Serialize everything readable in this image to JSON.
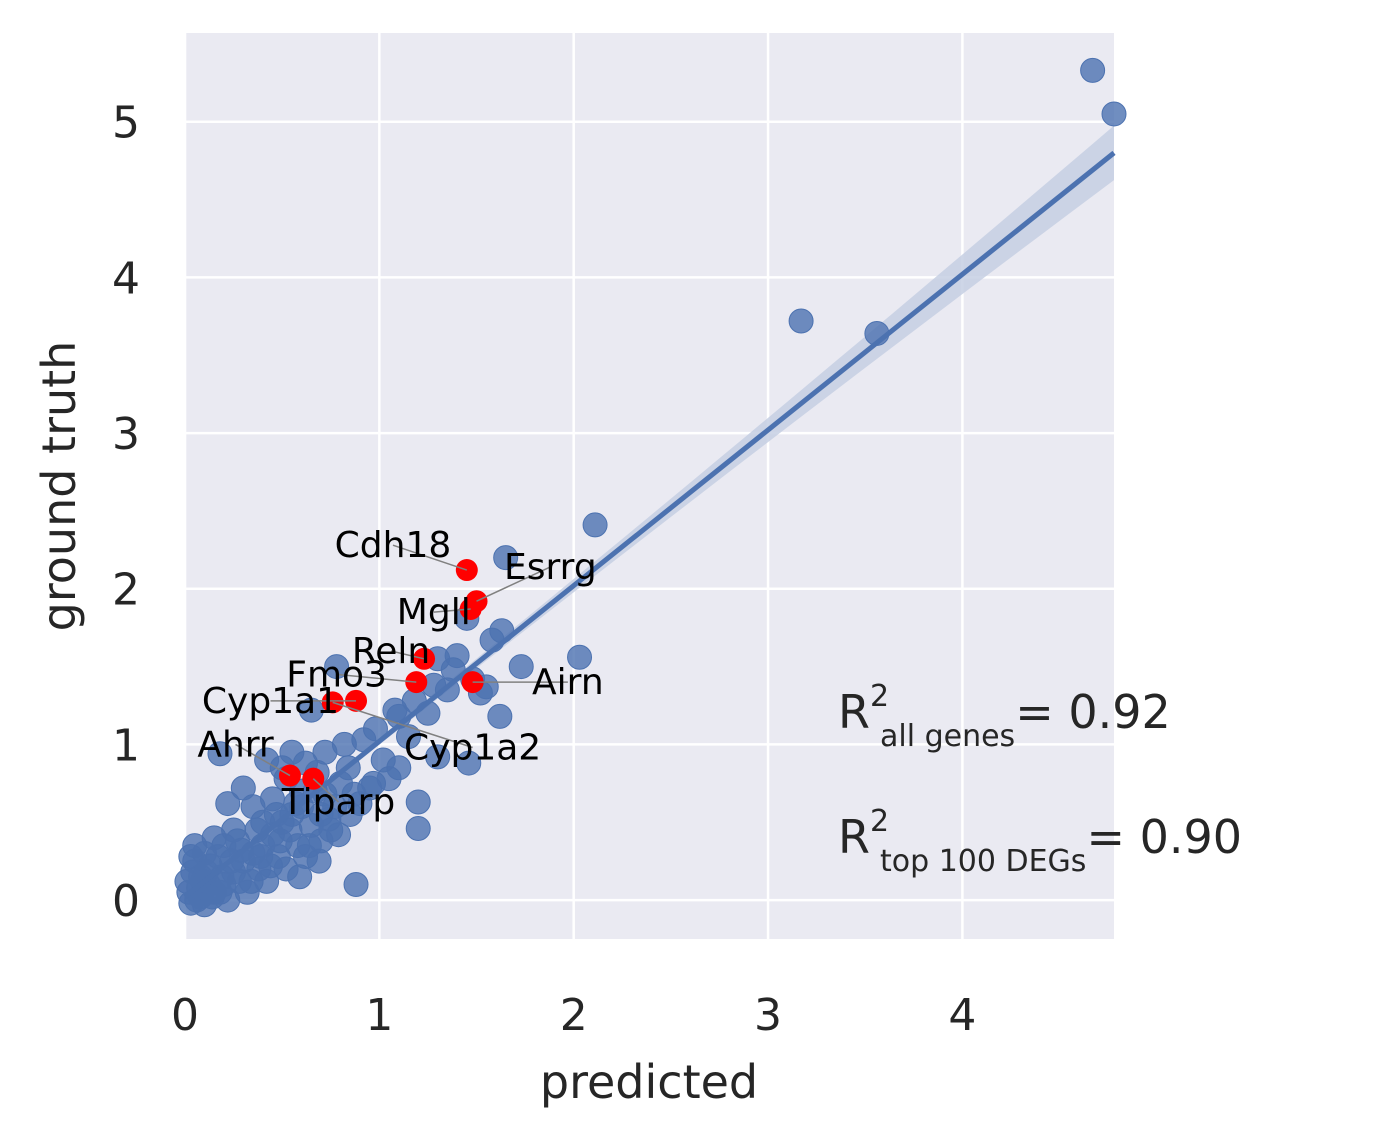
{
  "chart_data": {
    "type": "scatter",
    "xlabel": "predicted",
    "ylabel": "ground truth",
    "xlim": [
      0,
      4.78
    ],
    "ylim": [
      -0.25,
      5.57
    ],
    "xticks": [
      0,
      1,
      2,
      3,
      4
    ],
    "yticks": [
      0,
      1,
      2,
      3,
      4,
      5
    ],
    "grid": true,
    "colors": {
      "background": "#eaeaf2",
      "grid": "#ffffff",
      "points": "#4c72b0",
      "highlight": "#ff0000",
      "regression": "#4c72b0",
      "ci_band": "#c5cfe3",
      "arrow": "#808080"
    },
    "regression": {
      "slope": 1.0,
      "intercept": 0.02,
      "ci_halfwidth_at_max": 0.16
    },
    "points": [
      [
        4.67,
        5.33
      ],
      [
        4.78,
        5.05
      ],
      [
        3.17,
        3.72
      ],
      [
        3.56,
        3.64
      ],
      [
        2.11,
        2.41
      ],
      [
        1.65,
        2.2
      ],
      [
        2.03,
        1.56
      ],
      [
        1.73,
        1.5
      ],
      [
        1.63,
        1.73
      ],
      [
        1.58,
        1.67
      ],
      [
        1.62,
        1.18
      ],
      [
        1.46,
        0.88
      ],
      [
        1.55,
        1.37
      ],
      [
        1.52,
        1.33
      ],
      [
        1.4,
        1.57
      ],
      [
        1.3,
        1.55
      ],
      [
        1.45,
        1.81
      ],
      [
        1.35,
        1.35
      ],
      [
        1.3,
        0.92
      ],
      [
        1.2,
        0.63
      ],
      [
        1.2,
        0.46
      ],
      [
        1.1,
        0.85
      ],
      [
        1.05,
        0.78
      ],
      [
        0.95,
        0.72
      ],
      [
        0.92,
        1.03
      ],
      [
        0.88,
        0.1
      ],
      [
        0.78,
        1.5
      ],
      [
        0.65,
        1.22
      ],
      [
        0.55,
        0.95
      ],
      [
        0.5,
        0.85
      ],
      [
        0.42,
        0.9
      ],
      [
        0.18,
        0.94
      ],
      [
        0.22,
        0.62
      ],
      [
        0.9,
        0.62
      ],
      [
        0.85,
        0.55
      ],
      [
        0.75,
        0.45
      ],
      [
        0.7,
        0.55
      ],
      [
        0.68,
        0.82
      ],
      [
        0.6,
        0.7
      ],
      [
        0.45,
        0.65
      ],
      [
        0.4,
        0.5
      ],
      [
        0.35,
        0.6
      ],
      [
        0.3,
        0.72
      ],
      [
        0.25,
        0.45
      ],
      [
        0.2,
        0.35
      ],
      [
        0.15,
        0.4
      ],
      [
        0.1,
        0.3
      ],
      [
        0.05,
        0.25
      ],
      [
        0.08,
        0.15
      ],
      [
        0.12,
        0.1
      ],
      [
        0.02,
        0.05
      ],
      [
        0.04,
        0.18
      ],
      [
        0.06,
        0.0
      ],
      [
        0.1,
        -0.03
      ],
      [
        0.15,
        0.05
      ],
      [
        0.2,
        0.1
      ],
      [
        0.25,
        0.18
      ],
      [
        0.3,
        0.25
      ],
      [
        0.35,
        0.3
      ],
      [
        0.4,
        0.35
      ],
      [
        0.45,
        0.42
      ],
      [
        0.5,
        0.5
      ],
      [
        0.55,
        0.55
      ],
      [
        0.6,
        0.6
      ],
      [
        0.65,
        0.48
      ],
      [
        0.72,
        0.68
      ],
      [
        0.8,
        0.75
      ],
      [
        0.58,
        0.35
      ],
      [
        0.48,
        0.28
      ],
      [
        0.38,
        0.2
      ],
      [
        0.28,
        0.12
      ],
      [
        0.18,
        0.05
      ],
      [
        0.08,
        0.02
      ],
      [
        0.03,
        -0.02
      ],
      [
        0.22,
        0.0
      ],
      [
        0.32,
        0.05
      ],
      [
        0.42,
        0.12
      ],
      [
        0.52,
        0.2
      ],
      [
        0.62,
        0.28
      ],
      [
        0.7,
        0.38
      ],
      [
        0.13,
        0.22
      ],
      [
        0.09,
        0.12
      ],
      [
        0.17,
        0.28
      ],
      [
        0.27,
        0.38
      ],
      [
        0.37,
        0.45
      ],
      [
        0.47,
        0.55
      ],
      [
        0.57,
        0.62
      ],
      [
        0.67,
        0.7
      ],
      [
        0.77,
        0.6
      ],
      [
        0.87,
        0.68
      ],
      [
        0.97,
        0.75
      ],
      [
        1.02,
        0.9
      ],
      [
        1.15,
        1.05
      ],
      [
        1.25,
        1.2
      ],
      [
        1.1,
        1.18
      ],
      [
        0.98,
        1.1
      ],
      [
        0.82,
        1.0
      ],
      [
        0.72,
        0.95
      ],
      [
        0.62,
        0.88
      ],
      [
        0.52,
        0.78
      ],
      [
        0.01,
        0.12
      ],
      [
        0.03,
        0.28
      ],
      [
        0.05,
        0.35
      ],
      [
        0.07,
        0.08
      ],
      [
        0.11,
        0.18
      ],
      [
        0.14,
        0.02
      ],
      [
        0.19,
        0.15
      ],
      [
        0.24,
        0.25
      ],
      [
        0.29,
        0.32
      ],
      [
        0.34,
        0.12
      ],
      [
        0.39,
        0.28
      ],
      [
        0.44,
        0.22
      ],
      [
        0.49,
        0.38
      ],
      [
        0.54,
        0.45
      ],
      [
        0.59,
        0.15
      ],
      [
        0.64,
        0.35
      ],
      [
        0.69,
        0.25
      ],
      [
        0.74,
        0.52
      ],
      [
        0.79,
        0.42
      ],
      [
        0.84,
        0.85
      ],
      [
        1.38,
        1.48
      ],
      [
        1.48,
        1.42
      ],
      [
        1.28,
        1.38
      ],
      [
        1.18,
        1.28
      ],
      [
        1.08,
        1.22
      ]
    ],
    "highlighted_genes": [
      {
        "name": "Cdh18",
        "x": 1.45,
        "y": 2.12,
        "lx": 1.07,
        "ly": 2.28
      },
      {
        "name": "Esrrg",
        "x": 1.5,
        "y": 1.92,
        "lx": 1.88,
        "ly": 2.14
      },
      {
        "name": "Mgll",
        "x": 1.47,
        "y": 1.87,
        "lx": 1.28,
        "ly": 1.85
      },
      {
        "name": "Reln",
        "x": 1.23,
        "y": 1.55,
        "lx": 1.06,
        "ly": 1.6
      },
      {
        "name": "Fmo3",
        "x": 1.19,
        "y": 1.4,
        "lx": 0.78,
        "ly": 1.45
      },
      {
        "name": "Airn",
        "x": 1.48,
        "y": 1.4,
        "lx": 1.97,
        "ly": 1.4
      },
      {
        "name": "Cyp1a1",
        "x": 0.88,
        "y": 1.28,
        "lx": 0.44,
        "ly": 1.28
      },
      {
        "name": "Cyp1a2",
        "x": 0.76,
        "y": 1.27,
        "lx": 1.48,
        "ly": 0.98
      },
      {
        "name": "Ahrr",
        "x": 0.54,
        "y": 0.8,
        "lx": 0.26,
        "ly": 1.0
      },
      {
        "name": "Tiparp",
        "x": 0.66,
        "y": 0.78,
        "lx": 0.79,
        "ly": 0.63
      }
    ]
  },
  "r2": {
    "all_prefix": "R",
    "all_sup": "2",
    "all_sub": "all genes",
    "all_value": "= 0.92",
    "top_prefix": "R",
    "top_sup": "2",
    "top_sub": "top 100 DEGs",
    "top_value": "= 0.90"
  }
}
